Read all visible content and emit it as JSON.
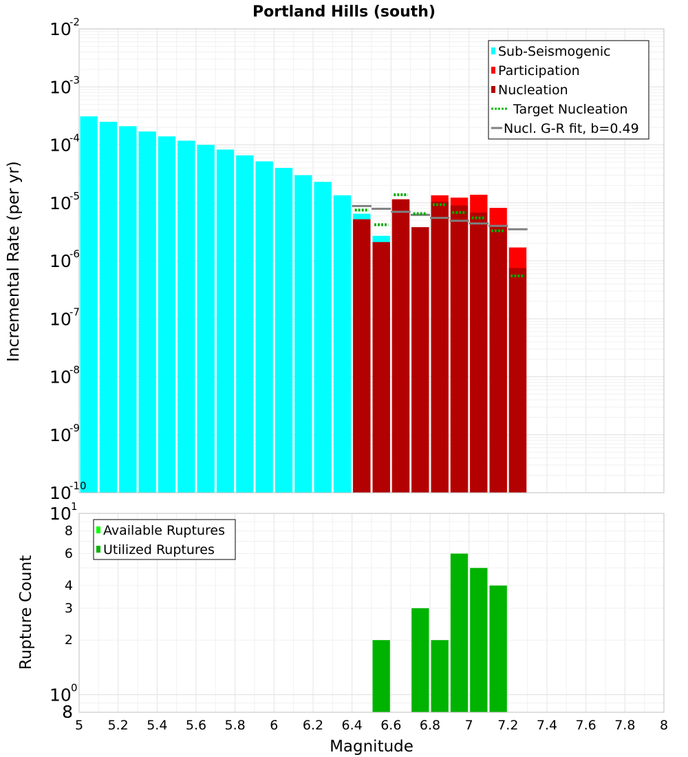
{
  "chart_data": [
    {
      "type": "bar",
      "title": "Portland Hills (south)",
      "ylabel": "Incremental Rate (per yr)",
      "xlabel": "",
      "xlim": [
        5,
        8
      ],
      "ylim": [
        1e-10,
        0.01
      ],
      "yscale": "log",
      "grid": true,
      "x_ticks": [
        "5",
        "5.2",
        "5.4",
        "5.6",
        "5.8",
        "6",
        "6.2",
        "6.4",
        "6.6",
        "6.8",
        "7",
        "7.2",
        "7.4",
        "7.6",
        "7.8",
        "8"
      ],
      "y_ticks": [
        {
          "base": "10",
          "exp": "-10",
          "value": 1e-10
        },
        {
          "base": "10",
          "exp": "-9",
          "value": 1e-09
        },
        {
          "base": "10",
          "exp": "-8",
          "value": 1e-08
        },
        {
          "base": "10",
          "exp": "-7",
          "value": 1e-07
        },
        {
          "base": "10",
          "exp": "-6",
          "value": 1e-06
        },
        {
          "base": "10",
          "exp": "-5",
          "value": 1e-05
        },
        {
          "base": "10",
          "exp": "-4",
          "value": 0.0001
        },
        {
          "base": "10",
          "exp": "-3",
          "value": 0.001
        },
        {
          "base": "10",
          "exp": "-2",
          "value": 0.01
        }
      ],
      "bin_width": 0.1,
      "series": [
        {
          "name": "Sub-Seismogenic",
          "color": "#00ffff",
          "x": [
            5.05,
            5.15,
            5.25,
            5.35,
            5.45,
            5.55,
            5.65,
            5.75,
            5.85,
            5.95,
            6.05,
            6.15,
            6.25,
            6.35,
            6.45,
            6.55
          ],
          "values": [
            0.00031,
            0.00025,
            0.00021,
            0.00017,
            0.00014,
            0.000118,
            0.0001,
            8.3e-05,
            6.6e-05,
            5.2e-05,
            4e-05,
            3e-05,
            2.3e-05,
            1.35e-05,
            6.5e-06,
            2.7e-06
          ]
        },
        {
          "name": "Participation",
          "color": "#ff0000",
          "x": [
            6.45,
            6.55,
            6.65,
            6.75,
            6.85,
            6.95,
            7.05,
            7.15,
            7.25
          ],
          "values": [
            5.2e-06,
            2.1e-06,
            1.15e-05,
            3.8e-06,
            1.35e-05,
            1.23e-05,
            1.38e-05,
            8.2e-06,
            1.7e-06
          ]
        },
        {
          "name": "Nucleation",
          "color": "#b30000",
          "x": [
            6.45,
            6.55,
            6.65,
            6.75,
            6.85,
            6.95,
            7.05,
            7.15,
            7.25
          ],
          "values": [
            5.2e-06,
            2.1e-06,
            1.15e-05,
            3.8e-06,
            1.05e-05,
            9e-06,
            6.8e-06,
            4.1e-06,
            7.5e-07
          ]
        },
        {
          "name": "Target Nucleation",
          "color": "#00aa00",
          "style": "dotted",
          "x": [
            6.45,
            6.55,
            6.65,
            6.75,
            6.85,
            6.95,
            7.05,
            7.15,
            7.25
          ],
          "values": [
            7.5e-06,
            4.2e-06,
            1.38e-05,
            6.5e-06,
            9.3e-06,
            6.8e-06,
            5.5e-06,
            3.3e-06,
            5.5e-07
          ]
        },
        {
          "name": "Nucl. G-R fit, b=0.49",
          "color": "#808080",
          "x": [
            6.45,
            6.55,
            6.65,
            6.75,
            6.85,
            6.95,
            7.05,
            7.15,
            7.25
          ],
          "values": [
            8.8e-06,
            7.9e-06,
            7e-06,
            6.2e-06,
            5.5e-06,
            4.9e-06,
            4.4e-06,
            4e-06,
            3.5e-06
          ]
        }
      ],
      "legend": {
        "position": "top-right",
        "items": [
          {
            "label": "Sub-Seismogenic",
            "color": "#00ffff",
            "kind": "box"
          },
          {
            "label": "Participation",
            "color": "#ff0000",
            "kind": "box"
          },
          {
            "label": "Nucleation",
            "color": "#b30000",
            "kind": "box"
          },
          {
            "label": "Target Nucleation",
            "color": "#00bb00",
            "kind": "dotted"
          },
          {
            "label": "Nucl. G-R fit, b=0.49",
            "color": "#808080",
            "kind": "line"
          }
        ]
      }
    },
    {
      "type": "bar",
      "title": "",
      "ylabel": "Rupture Count",
      "xlabel": "Magnitude",
      "xlim": [
        5,
        8
      ],
      "ylim": [
        0.8,
        10
      ],
      "yscale": "log",
      "grid": true,
      "x_ticks": [
        "5",
        "5.2",
        "5.4",
        "5.6",
        "5.8",
        "6",
        "6.2",
        "6.4",
        "6.6",
        "6.8",
        "7",
        "7.2",
        "7.4",
        "7.6",
        "7.8",
        "8"
      ],
      "y_ticks_minor": [
        {
          "label": "2",
          "value": 2
        },
        {
          "label": "3",
          "value": 3
        },
        {
          "label": "4",
          "value": 4
        },
        {
          "label": "6",
          "value": 6
        },
        {
          "label": "8",
          "value": 8
        }
      ],
      "y_tick_bottom": {
        "label": "8",
        "value": 0.8
      },
      "y_ticks_major": [
        {
          "base": "10",
          "exp": "0",
          "value": 1
        },
        {
          "base": "10",
          "exp": "1",
          "value": 10
        }
      ],
      "bin_width": 0.1,
      "series": [
        {
          "name": "Available Ruptures",
          "color": "#00ff00",
          "x": [
            6.55,
            6.75,
            6.85,
            6.95,
            7.05,
            7.15
          ],
          "values": [
            2,
            3,
            2,
            6,
            5,
            4
          ]
        },
        {
          "name": "Utilized Ruptures",
          "color": "#00b300",
          "x": [
            6.55,
            6.75,
            6.85,
            6.95,
            7.05,
            7.15
          ],
          "values": [
            2,
            3,
            2,
            6,
            5,
            4
          ]
        }
      ],
      "legend": {
        "position": "top-left",
        "items": [
          {
            "label": "Available Ruptures",
            "color": "#00ff00",
            "kind": "box"
          },
          {
            "label": "Utilized Ruptures",
            "color": "#00b300",
            "kind": "box"
          }
        ]
      }
    }
  ]
}
